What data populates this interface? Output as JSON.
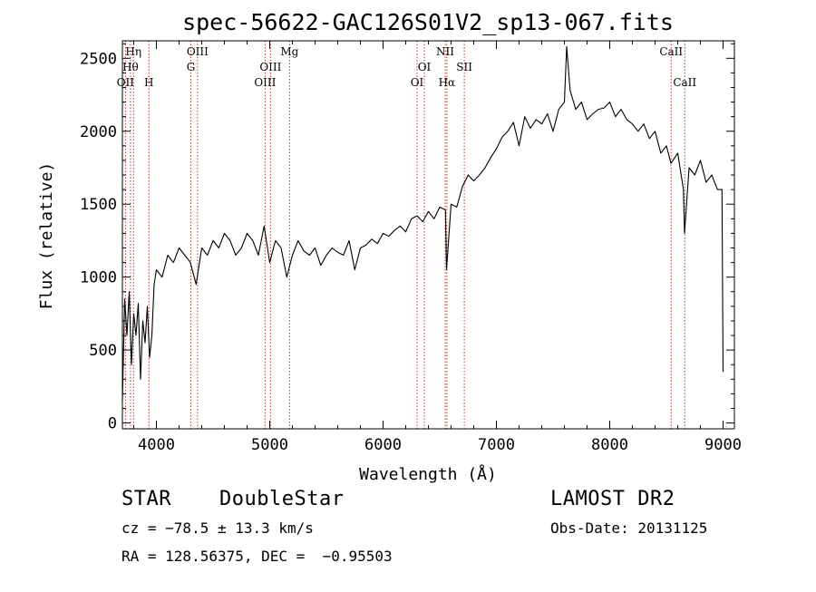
{
  "chart_data": {
    "type": "line",
    "title": "spec-56622-GAC126S01V2_sp13-067.fits",
    "xlabel": "Wavelength (Å)",
    "ylabel": "Flux (relative)",
    "xlim": [
      3700,
      9100
    ],
    "ylim": [
      -40,
      2620
    ],
    "xticks": [
      4000,
      5000,
      6000,
      7000,
      8000,
      9000
    ],
    "yticks": [
      0,
      500,
      1000,
      1500,
      2000,
      2500
    ],
    "grid": false,
    "series": [
      {
        "x": [
          3700,
          3720,
          3740,
          3760,
          3780,
          3800,
          3820,
          3840,
          3860,
          3880,
          3900,
          3920,
          3940,
          3960,
          3980,
          4000,
          4050,
          4100,
          4150,
          4200,
          4250,
          4300,
          4350,
          4400,
          4450,
          4500,
          4550,
          4600,
          4650,
          4700,
          4750,
          4800,
          4850,
          4900,
          4950,
          5000,
          5050,
          5100,
          5150,
          5200,
          5250,
          5300,
          5350,
          5400,
          5450,
          5500,
          5550,
          5600,
          5650,
          5700,
          5750,
          5800,
          5850,
          5900,
          5950,
          6000,
          6050,
          6100,
          6150,
          6200,
          6250,
          6300,
          6350,
          6400,
          6450,
          6500,
          6550,
          6560,
          6600,
          6650,
          6700,
          6750,
          6800,
          6850,
          6900,
          6950,
          7000,
          7050,
          7100,
          7150,
          7200,
          7250,
          7300,
          7350,
          7400,
          7450,
          7500,
          7550,
          7600,
          7620,
          7650,
          7700,
          7750,
          7800,
          7850,
          7900,
          7950,
          8000,
          8050,
          8100,
          8150,
          8200,
          8250,
          8300,
          8350,
          8400,
          8450,
          8500,
          8540,
          8600,
          8650,
          8660,
          8700,
          8750,
          8800,
          8850,
          8900,
          8950,
          8990,
          9000
        ],
        "y": [
          150,
          850,
          600,
          900,
          400,
          750,
          600,
          820,
          300,
          700,
          550,
          800,
          450,
          600,
          950,
          1050,
          1000,
          1150,
          1100,
          1200,
          1150,
          1100,
          950,
          1200,
          1150,
          1250,
          1200,
          1300,
          1250,
          1150,
          1200,
          1300,
          1250,
          1150,
          1350,
          1100,
          1250,
          1200,
          1000,
          1150,
          1250,
          1180,
          1150,
          1200,
          1080,
          1150,
          1200,
          1170,
          1150,
          1250,
          1050,
          1200,
          1220,
          1260,
          1230,
          1300,
          1280,
          1320,
          1350,
          1310,
          1400,
          1420,
          1380,
          1450,
          1400,
          1480,
          1460,
          1050,
          1500,
          1480,
          1620,
          1700,
          1660,
          1700,
          1750,
          1820,
          1880,
          1960,
          2000,
          2060,
          1900,
          2100,
          2020,
          2080,
          2050,
          2120,
          2000,
          2150,
          2200,
          2580,
          2280,
          2150,
          2200,
          2080,
          2120,
          2150,
          2160,
          2200,
          2100,
          2150,
          2080,
          2050,
          2000,
          2050,
          1950,
          2000,
          1850,
          1900,
          1780,
          1850,
          1600,
          1300,
          1750,
          1700,
          1800,
          1650,
          1700,
          1600,
          1600,
          350
        ]
      }
    ],
    "lines": [
      {
        "x": 3727,
        "label": "OII",
        "row": 3
      },
      {
        "x": 3771,
        "label": "Hθ",
        "row": 2
      },
      {
        "x": 3798,
        "label": "Hη",
        "row": 1
      },
      {
        "x": 3934,
        "label": "H",
        "row": 3
      },
      {
        "x": 4304,
        "label": "G",
        "row": 2
      },
      {
        "x": 4363,
        "label": "OIII",
        "row": 1
      },
      {
        "x": 4959,
        "label": "OIII",
        "row": 3
      },
      {
        "x": 5007,
        "label": "OIII",
        "row": 2
      },
      {
        "x": 5175,
        "label": "Mg",
        "row": 1
      },
      {
        "x": 6300,
        "label": "OI",
        "row": 3
      },
      {
        "x": 6364,
        "label": "OI",
        "row": 2
      },
      {
        "x": 6548,
        "label": "NII",
        "row": 1
      },
      {
        "x": 6563,
        "label": "Hα",
        "row": 3
      },
      {
        "x": 6717,
        "label": "SII",
        "row": 2
      },
      {
        "x": 8542,
        "label": "CaII",
        "row": 1
      },
      {
        "x": 8662,
        "label": "CaII",
        "row": 3
      }
    ],
    "line_color": "#c0392b",
    "spectrum_color": "#000000"
  },
  "footer": {
    "object_class": "STAR",
    "subclass": "DoubleStar",
    "survey": "LAMOST DR2",
    "cz": "cz = −78.5 ± 13.3 km/s",
    "obs_date": "Obs-Date: 20131125",
    "coords": "RA = 128.56375, DEC =  −0.95503"
  }
}
